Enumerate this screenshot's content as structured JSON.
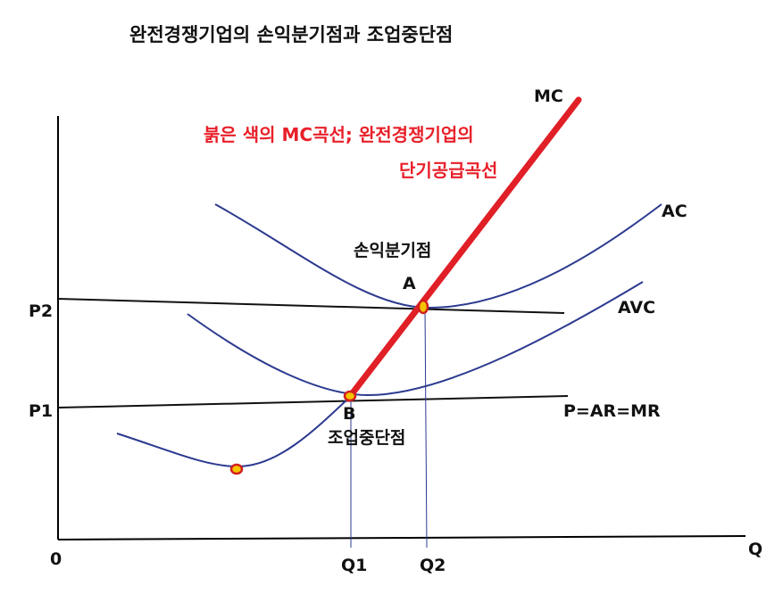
{
  "title": "완전경쟁기업의 손익분기점과 조업중단점",
  "red_note": {
    "line1": "붉은 색의 MC곡선; 완전경쟁기업의",
    "line2": "단기공급곡선"
  },
  "axes": {
    "origin": "0",
    "x_label": "Q"
  },
  "curves": {
    "mc": "MC",
    "ac": "AC",
    "avc": "AVC"
  },
  "prices": {
    "p1": "P1",
    "p2": "P2",
    "demand": "P=AR=MR"
  },
  "quantities": {
    "q1": "Q1",
    "q2": "Q2"
  },
  "points": {
    "a_letter": "A",
    "a_label": "손익분기점",
    "b_letter": "B",
    "b_label": "조업중단점"
  },
  "colors": {
    "curve_blue": "#2b3a8f",
    "supply_red": "#e01f27",
    "marker_fill": "#f5c400"
  }
}
